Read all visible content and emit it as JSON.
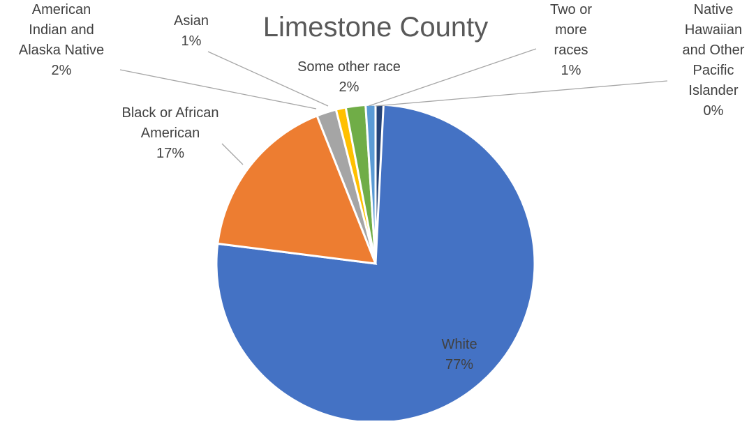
{
  "chart_data": {
    "type": "pie",
    "title": "Limestone County",
    "slices": [
      {
        "name": "White",
        "value": 77,
        "label": "77%",
        "color": "#4472C4"
      },
      {
        "name": "Black or African American",
        "value": 17,
        "label": "17%",
        "color": "#ED7D31"
      },
      {
        "name": "American Indian and Alaska Native",
        "value": 2,
        "label": "2%",
        "color": "#A5A5A5"
      },
      {
        "name": "Asian",
        "value": 1,
        "label": "1%",
        "color": "#FFC000"
      },
      {
        "name": "Some other race",
        "value": 2,
        "label": "2%",
        "color": "#70AD47"
      },
      {
        "name": "Two or more races",
        "value": 1,
        "label": "1%",
        "color": "#5B9BD5"
      },
      {
        "name": "Native Hawaiian and Other Pacific Islander",
        "value": 0,
        "label": "0%",
        "color": "#264478"
      }
    ]
  }
}
